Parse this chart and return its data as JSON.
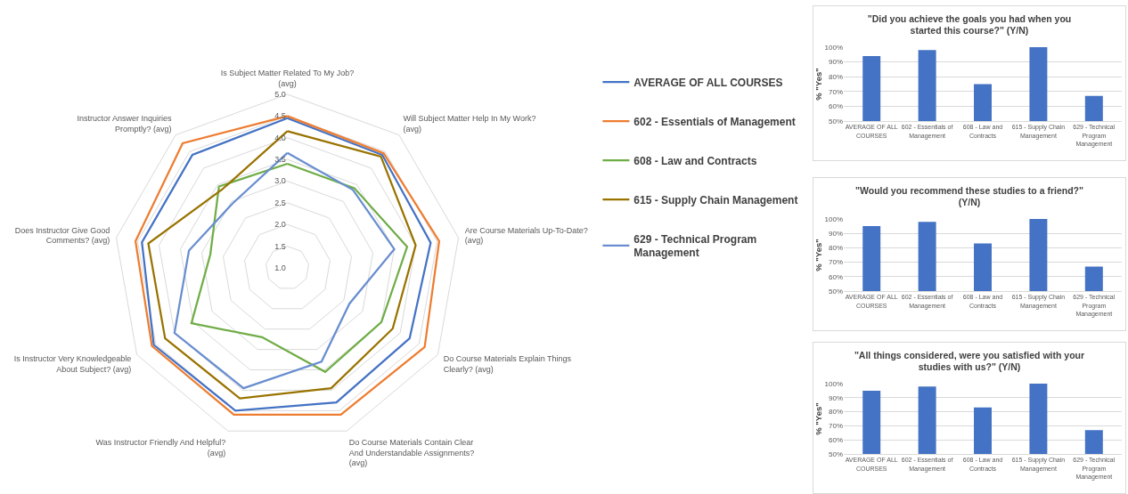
{
  "chart_data": [
    {
      "type": "radar",
      "categories": [
        "Is Subject Matter Related To My Job? (avg)",
        "Will Subject Matter Help In My Work? (avg)",
        "Are Course Materials Up-To-Date? (avg)",
        "Do Course Materials Explain Things Clearly? (avg)",
        "Do Course Materials Contain Clear And Understandable Assignments? (avg)",
        "Was Instructor Friendly And Helpful? (avg)",
        "Is Instructor Very Knowledgeable About Subject? (avg)",
        "Does Instructor Give Good Comments? (avg)",
        "Instructor Answer Inquiries Promptly? (avg)"
      ],
      "series": [
        {
          "name": "AVERAGE OF ALL COURSES",
          "color": "#4472c4",
          "values": [
            4.45,
            4.4,
            4.35,
            4.25,
            4.3,
            4.5,
            4.55,
            4.4,
            4.4
          ]
        },
        {
          "name": "602 - Essentials of Management",
          "color": "#ed7d31",
          "values": [
            4.5,
            4.45,
            4.55,
            4.65,
            4.6,
            4.6,
            4.6,
            4.55,
            4.75
          ]
        },
        {
          "name": "608 - Law and Contracts",
          "color": "#70ad47",
          "values": [
            3.4,
            3.4,
            3.8,
            3.5,
            3.55,
            2.7,
            3.55,
            2.8,
            3.45
          ]
        },
        {
          "name": "615 - Supply Chain Management",
          "color": "#997300",
          "values": [
            4.15,
            4.35,
            4.0,
            3.8,
            3.95,
            4.2,
            4.25,
            4.25,
            3.35
          ]
        },
        {
          "name": "629 - Technical Program Management",
          "color": "#698ed0",
          "values": [
            3.65,
            3.35,
            3.5,
            2.65,
            3.3,
            3.95,
            4.0,
            3.3,
            2.95
          ]
        }
      ],
      "ylim": [
        1,
        5
      ],
      "yticks": [
        {
          "value": 1,
          "label": "1.0"
        },
        1.5,
        {
          "value": 2,
          "label": "2.0"
        },
        2.5,
        {
          "value": 3,
          "label": "3.0"
        },
        3.5,
        {
          "value": 4,
          "label": "4.0"
        },
        4.5,
        {
          "value": 5,
          "label": "5.0"
        }
      ],
      "grid": "y",
      "legend": "right"
    },
    {
      "type": "bar",
      "title": "\"Did you achieve the goals you had when you started this course?\" (Y/N)",
      "ylabel": "% \"Yes\"",
      "categories": [
        "AVERAGE OF ALL COURSES",
        "602 - Essentials of Management",
        "608 - Law and Contracts",
        "615 - Supply Chain Management",
        "629 - Technical Program Management"
      ],
      "values": [
        94,
        98,
        75,
        100,
        67
      ],
      "color": "#4472c4",
      "ylim": [
        50,
        100
      ],
      "yticks": [
        {
          "value": 50,
          "label": "50%"
        },
        {
          "value": 60,
          "label": "60%"
        },
        {
          "value": 70,
          "label": "70%"
        },
        {
          "value": 80,
          "label": "80%"
        },
        {
          "value": 90,
          "label": "90%"
        },
        {
          "value": 100,
          "label": "100%"
        }
      ],
      "grid": "y"
    },
    {
      "type": "bar",
      "title": "\"Would you recommend these studies to a friend?\" (Y/N)",
      "ylabel": "% \"Yes\"",
      "categories": [
        "AVERAGE OF ALL COURSES",
        "602 - Essentials of Management",
        "608 - Law and Contracts",
        "615 - Supply Chain Management",
        "629 - Technical Program Management"
      ],
      "values": [
        95,
        98,
        83,
        100,
        67
      ],
      "color": "#4472c4",
      "ylim": [
        50,
        100
      ],
      "yticks": [
        {
          "value": 50,
          "label": "50%"
        },
        {
          "value": 60,
          "label": "60%"
        },
        {
          "value": 70,
          "label": "70%"
        },
        {
          "value": 80,
          "label": "80%"
        },
        {
          "value": 90,
          "label": "90%"
        },
        {
          "value": 100,
          "label": "100%"
        }
      ],
      "grid": "y"
    },
    {
      "type": "bar",
      "title": "\"All things considered, were you satisfied with your studies with us?\" (Y/N)",
      "ylabel": "% \"Yes\"",
      "categories": [
        "AVERAGE OF ALL COURSES",
        "602 - Essentials of Management",
        "608 - Law and Contracts",
        "615 - Supply Chain Management",
        "629 - Technical Program Management"
      ],
      "values": [
        95,
        98,
        83,
        100,
        67
      ],
      "color": "#4472c4",
      "ylim": [
        50,
        100
      ],
      "yticks": [
        {
          "value": 50,
          "label": "50%"
        },
        {
          "value": 60,
          "label": "60%"
        },
        {
          "value": 70,
          "label": "70%"
        },
        {
          "value": 80,
          "label": "80%"
        },
        {
          "value": 90,
          "label": "90%"
        },
        {
          "value": 100,
          "label": "100%"
        }
      ],
      "grid": "y"
    }
  ]
}
